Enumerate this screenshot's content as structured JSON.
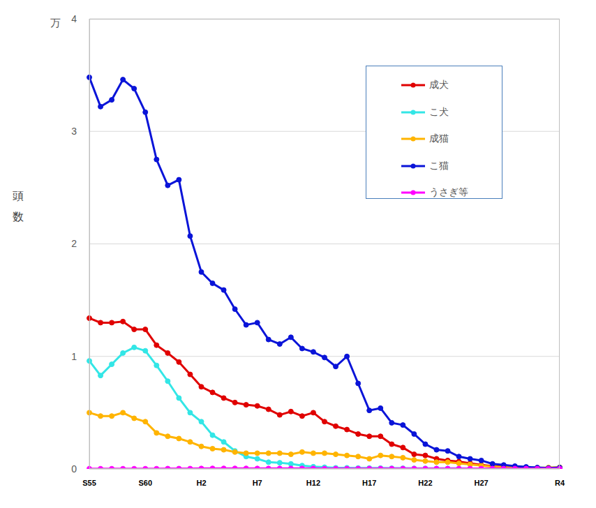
{
  "chart_data": {
    "type": "line",
    "y_label": "頭数",
    "y_unit": "万",
    "categories": [
      "S55",
      null,
      null,
      null,
      null,
      "S60",
      null,
      null,
      null,
      null,
      "H2",
      null,
      null,
      null,
      null,
      "H7",
      null,
      null,
      null,
      null,
      "H12",
      null,
      null,
      null,
      null,
      "H17",
      null,
      null,
      null,
      null,
      "H22",
      null,
      null,
      null,
      null,
      "H27",
      null,
      null,
      null,
      null,
      null,
      null,
      "R4"
    ],
    "series": [
      {
        "name": "成犬",
        "color": "#e00000",
        "values": [
          1.34,
          1.3,
          1.3,
          1.31,
          1.24,
          1.24,
          1.1,
          1.03,
          0.95,
          0.84,
          0.73,
          0.68,
          0.63,
          0.59,
          0.57,
          0.56,
          0.53,
          0.48,
          0.51,
          0.47,
          0.5,
          0.42,
          0.38,
          0.35,
          0.31,
          0.29,
          0.29,
          0.22,
          0.19,
          0.13,
          0.12,
          0.09,
          0.075,
          0.065,
          0.05,
          0.035,
          0.025,
          0.02,
          0.012,
          0.01,
          0.01,
          0.008,
          0.008
        ]
      },
      {
        "name": "こ犬",
        "color": "#33e6e6",
        "values": [
          0.96,
          0.83,
          0.93,
          1.03,
          1.08,
          1.05,
          0.92,
          0.78,
          0.63,
          0.5,
          0.42,
          0.3,
          0.24,
          0.16,
          0.11,
          0.09,
          0.06,
          0.055,
          0.045,
          0.03,
          0.02,
          0.015,
          0.01,
          0.01,
          0.008,
          0.008,
          0.007,
          0.006,
          0.006,
          0.005,
          0.005,
          0.004,
          0.004,
          0.004,
          0.003,
          0.003,
          0.003,
          0.002,
          0.002,
          0.002,
          0.002,
          0.002,
          0.002
        ]
      },
      {
        "name": "成猫",
        "color": "#ffb400",
        "values": [
          0.5,
          0.47,
          0.47,
          0.5,
          0.45,
          0.42,
          0.32,
          0.29,
          0.27,
          0.24,
          0.2,
          0.18,
          0.17,
          0.15,
          0.14,
          0.14,
          0.14,
          0.14,
          0.13,
          0.15,
          0.14,
          0.14,
          0.13,
          0.12,
          0.11,
          0.09,
          0.12,
          0.11,
          0.1,
          0.08,
          0.07,
          0.06,
          0.06,
          0.05,
          0.04,
          0.03,
          0.02,
          0.015,
          0.012,
          0.01,
          0.01,
          0.012,
          0.015
        ]
      },
      {
        "name": "こ猫",
        "color": "#0a14d8",
        "values": [
          3.48,
          3.22,
          3.28,
          3.46,
          3.38,
          3.17,
          2.75,
          2.52,
          2.57,
          2.07,
          1.75,
          1.65,
          1.59,
          1.42,
          1.28,
          1.3,
          1.15,
          1.11,
          1.17,
          1.07,
          1.04,
          0.99,
          0.91,
          1.0,
          0.76,
          0.52,
          0.54,
          0.41,
          0.39,
          0.31,
          0.22,
          0.17,
          0.16,
          0.11,
          0.09,
          0.075,
          0.045,
          0.035,
          0.025,
          0.018,
          0.012,
          0.008,
          0.012
        ]
      },
      {
        "name": "うさぎ等",
        "color": "#ff00ff",
        "values": [
          0.002,
          0.002,
          0.002,
          0.002,
          0.002,
          0.002,
          0.002,
          0.003,
          0.003,
          0.003,
          0.004,
          0.005,
          0.005,
          0.005,
          0.005,
          0.004,
          0.004,
          0.004,
          0.004,
          0.004,
          0.004,
          0.003,
          0.003,
          0.003,
          0.003,
          0.003,
          0.003,
          0.003,
          0.003,
          0.003,
          0.003,
          0.003,
          0.003,
          0.003,
          0.003,
          0.003,
          0.003,
          0.003,
          0.003,
          0.003,
          0.003,
          0.003,
          0.003
        ]
      }
    ],
    "ylim": [
      0,
      4
    ],
    "yticks": [
      0,
      1,
      2,
      3,
      4
    ],
    "grid": true,
    "legend": "upper right",
    "marker": "circle",
    "line_style": "solid"
  }
}
